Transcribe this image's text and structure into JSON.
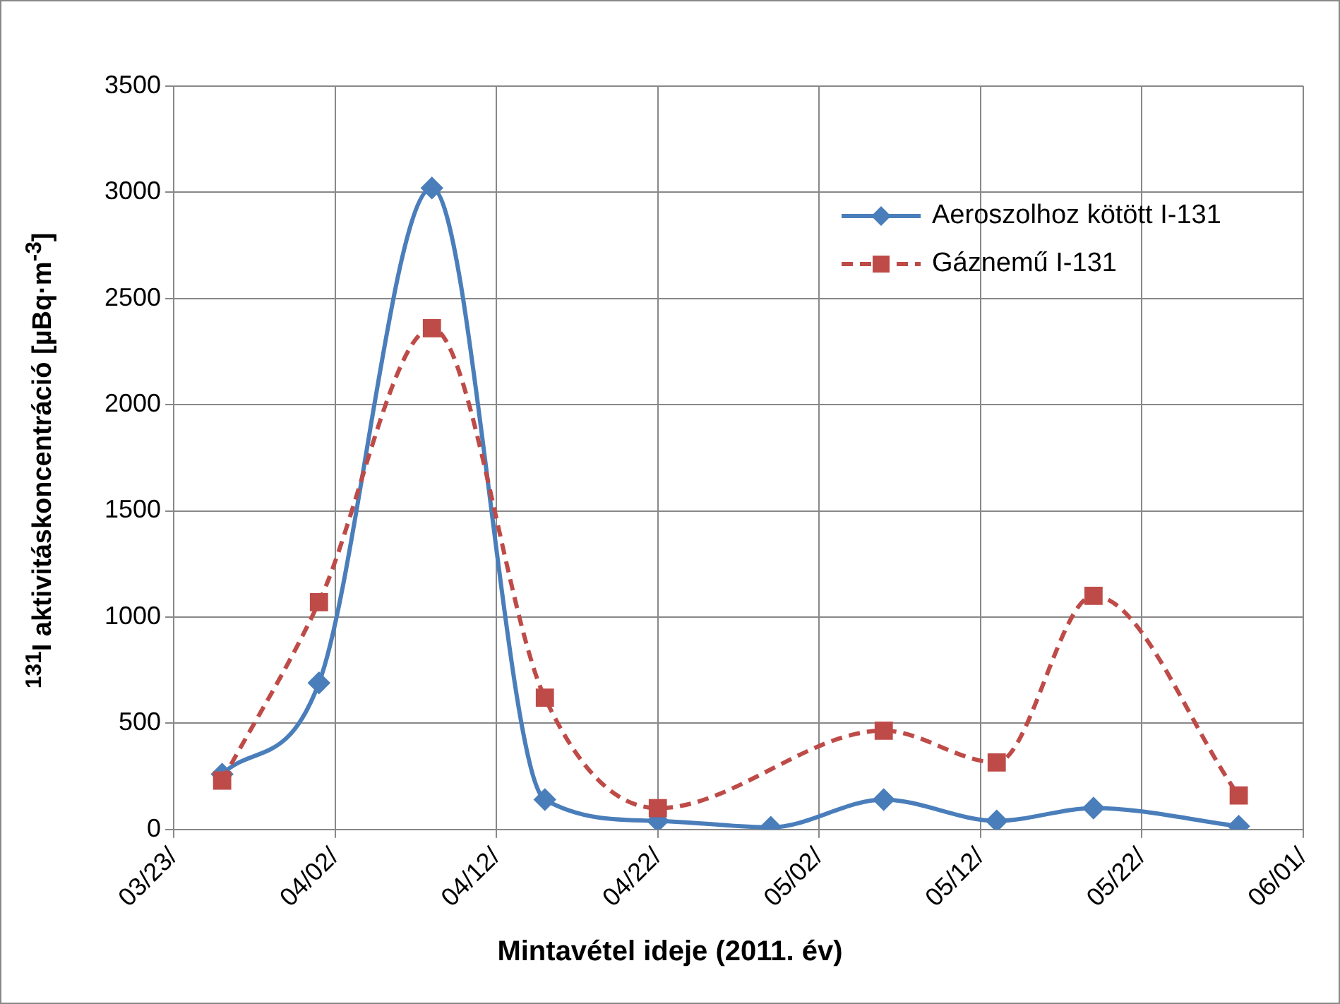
{
  "chart_data": {
    "type": "line",
    "xlabel": "Mintavétel ideje (2011. év)",
    "ylabel": "$^{131}$I aktivitáskoncentráció [µBq·m$^{-3}$]",
    "x": [
      "2011-03-26",
      "2011-04-01",
      "2011-04-08",
      "2011-04-15",
      "2011-04-22",
      "2011-04-29",
      "2011-05-06",
      "2011-05-13",
      "2011-05-19",
      "2011-05-28"
    ],
    "series": [
      {
        "name": "Aeroszolhoz kötött I-131",
        "color": "#4a7ebb",
        "marker": "diamond",
        "line_style": "solid",
        "values": [
          260,
          690,
          3020,
          140,
          40,
          10,
          140,
          40,
          100,
          15
        ]
      },
      {
        "name": "Gáznemű I-131",
        "color": "#be4b48",
        "marker": "square",
        "line_style": "dashed",
        "values": [
          230,
          1070,
          2360,
          620,
          100,
          null,
          465,
          315,
          1100,
          160
        ]
      }
    ],
    "xlim": [
      "2011-03-23",
      "2011-06-01"
    ],
    "xticks": [
      {
        "value": "2011-03-23",
        "label": "03/23/"
      },
      {
        "value": "2011-04-02",
        "label": "04/02/"
      },
      {
        "value": "2011-04-12",
        "label": "04/12/"
      },
      {
        "value": "2011-04-22",
        "label": "04/22/"
      },
      {
        "value": "2011-05-02",
        "label": "05/02/"
      },
      {
        "value": "2011-05-12",
        "label": "05/12/"
      },
      {
        "value": "2011-05-22",
        "label": "05/22/"
      },
      {
        "value": "2011-06-01",
        "label": "06/01/"
      }
    ],
    "ylim": [
      0,
      3500
    ],
    "yticks": [
      0,
      500,
      1000,
      1500,
      2000,
      2500,
      3000,
      3500
    ],
    "grid": true,
    "legend": "top right"
  }
}
